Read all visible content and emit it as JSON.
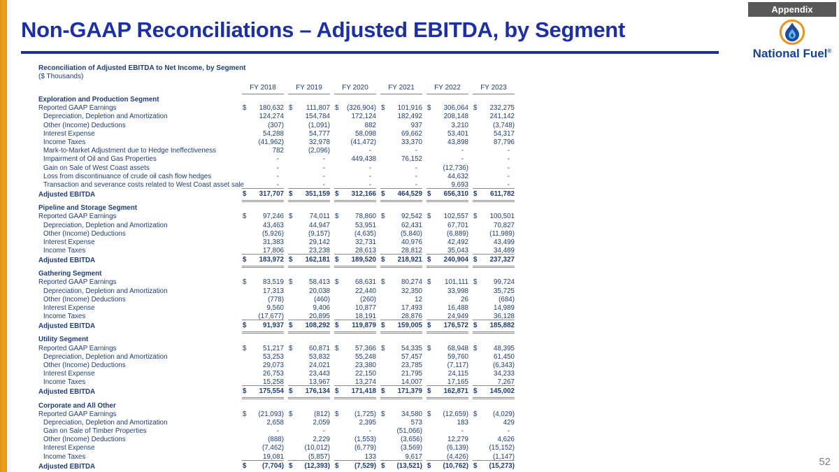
{
  "badge": "Appendix",
  "title": "Non-GAAP Reconciliations – Adjusted EBITDA, by Segment",
  "logo": {
    "name": "National Fuel",
    "reg": "®",
    "icon": "national-fuel-droplet-logo"
  },
  "colors": {
    "title_blue": "#1c2fa5",
    "table_navy": "#1f3d77",
    "badge_gray": "#595959",
    "accent_orange": "#f0a013",
    "rule_gray": "#7f7f7f",
    "logo_orange": "#e8961e",
    "logo_dark_blue": "#1b4c9e",
    "logo_light_blue": "#62b5e5"
  },
  "page_number": "52",
  "table": {
    "subtitle": "Reconciliation of Adjusted EBITDA to Net Income, by Segment",
    "units": "($ Thousands)",
    "columns": [
      "FY 2018",
      "FY 2019",
      "FY 2020",
      "FY 2021",
      "FY 2022",
      "FY 2023"
    ],
    "sections": [
      {
        "name": "Exploration and Production Segment",
        "rows": [
          {
            "label": "Reported GAAP Earnings",
            "dollar": true,
            "indent": false,
            "values": [
              "180,632",
              "111,807",
              "(326,904)",
              "101,916",
              "306,064",
              "232,275"
            ]
          },
          {
            "label": "Depreciation, Depletion and Amortization",
            "indent": true,
            "values": [
              "124,274",
              "154,784",
              "172,124",
              "182,492",
              "208,148",
              "241,142"
            ]
          },
          {
            "label": "Other (Income) Deductions",
            "indent": true,
            "values": [
              "(307)",
              "(1,091)",
              "882",
              "937",
              "3,210",
              "(3,748)"
            ]
          },
          {
            "label": "Interest Expense",
            "indent": true,
            "values": [
              "54,288",
              "54,777",
              "58,098",
              "69,662",
              "53,401",
              "54,317"
            ]
          },
          {
            "label": "Income Taxes",
            "indent": true,
            "values": [
              "(41,962)",
              "32,978",
              "(41,472)",
              "33,370",
              "43,898",
              "87,796"
            ]
          },
          {
            "label": "Mark-to-Market Adjustment due to Hedge Ineffectiveness",
            "indent": true,
            "values": [
              "782",
              "(2,096)",
              "-",
              "-",
              "-",
              "-"
            ]
          },
          {
            "label": "Impairment of Oil and Gas Properties",
            "indent": true,
            "values": [
              "-",
              "-",
              "449,438",
              "76,152",
              "-",
              "-"
            ]
          },
          {
            "label": "Gain on Sale of West Coast assets",
            "indent": true,
            "values": [
              "-",
              "-",
              "-",
              "-",
              "(12,736)",
              "-"
            ]
          },
          {
            "label": "Loss from discontinuance of crude oil cash flow hedges",
            "indent": true,
            "values": [
              "-",
              "-",
              "-",
              "-",
              "44,632",
              "-"
            ]
          },
          {
            "label": "Transaction and severance costs related to West Coast asset sale",
            "indent": true,
            "values": [
              "-",
              "-",
              "-",
              "-",
              "9,693",
              "-"
            ]
          }
        ],
        "total": {
          "label": "Adjusted EBITDA",
          "values": [
            "317,707",
            "351,159",
            "312,166",
            "464,529",
            "656,310",
            "611,782"
          ]
        }
      },
      {
        "name": "Pipeline and Storage Segment",
        "rows": [
          {
            "label": "Reported GAAP Earnings",
            "dollar": true,
            "indent": false,
            "values": [
              "97,246",
              "74,011",
              "78,860",
              "92,542",
              "102,557",
              "100,501"
            ]
          },
          {
            "label": "Depreciation, Depletion and Amortization",
            "indent": true,
            "values": [
              "43,463",
              "44,947",
              "53,951",
              "62,431",
              "67,701",
              "70,827"
            ]
          },
          {
            "label": "Other (Income) Deductions",
            "indent": true,
            "values": [
              "(5,926)",
              "(9,157)",
              "(4,635)",
              "(5,840)",
              "(6,889)",
              "(11,989)"
            ]
          },
          {
            "label": "Interest Expense",
            "indent": true,
            "values": [
              "31,383",
              "29,142",
              "32,731",
              "40,976",
              "42,492",
              "43,499"
            ]
          },
          {
            "label": "Income Taxes",
            "indent": true,
            "values": [
              "17,806",
              "23,238",
              "28,613",
              "28,812",
              "35,043",
              "34,489"
            ]
          }
        ],
        "total": {
          "label": "Adjusted EBITDA",
          "values": [
            "183,972",
            "162,181",
            "189,520",
            "218,921",
            "240,904",
            "237,327"
          ]
        }
      },
      {
        "name": "Gathering Segment",
        "rows": [
          {
            "label": "Reported GAAP Earnings",
            "dollar": true,
            "indent": false,
            "values": [
              "83,519",
              "58,413",
              "68,631",
              "80,274",
              "101,111",
              "99,724"
            ]
          },
          {
            "label": "Depreciation, Depletion and Amortization",
            "indent": true,
            "values": [
              "17,313",
              "20,038",
              "22,440",
              "32,350",
              "33,998",
              "35,725"
            ]
          },
          {
            "label": "Other (Income) Deductions",
            "indent": true,
            "values": [
              "(778)",
              "(460)",
              "(260)",
              "12",
              "26",
              "(684)"
            ]
          },
          {
            "label": "Interest Expense",
            "indent": true,
            "values": [
              "9,560",
              "9,406",
              "10,877",
              "17,493",
              "16,488",
              "14,989"
            ]
          },
          {
            "label": "Income Taxes",
            "indent": true,
            "values": [
              "(17,677)",
              "20,895",
              "18,191",
              "28,876",
              "24,949",
              "36,128"
            ]
          }
        ],
        "total": {
          "label": "Adjusted EBITDA",
          "values": [
            "91,937",
            "108,292",
            "119,879",
            "159,005",
            "176,572",
            "185,882"
          ]
        }
      },
      {
        "name": "Utility Segment",
        "rows": [
          {
            "label": "Reported GAAP Earnings",
            "dollar": true,
            "indent": false,
            "values": [
              "51,217",
              "60,871",
              "57,366",
              "54,335",
              "68,948",
              "48,395"
            ]
          },
          {
            "label": "Depreciation, Depletion and Amortization",
            "indent": true,
            "values": [
              "53,253",
              "53,832",
              "55,248",
              "57,457",
              "59,760",
              "61,450"
            ]
          },
          {
            "label": "Other (Income) Deductions",
            "indent": true,
            "values": [
              "29,073",
              "24,021",
              "23,380",
              "23,785",
              "(7,117)",
              "(6,343)"
            ]
          },
          {
            "label": "Interest Expense",
            "indent": true,
            "values": [
              "26,753",
              "23,443",
              "22,150",
              "21,795",
              "24,115",
              "34,233"
            ]
          },
          {
            "label": "Income Taxes",
            "indent": true,
            "values": [
              "15,258",
              "13,967",
              "13,274",
              "14,007",
              "17,165",
              "7,267"
            ]
          }
        ],
        "total": {
          "label": "Adjusted EBITDA",
          "values": [
            "175,554",
            "176,134",
            "171,418",
            "171,379",
            "162,871",
            "145,002"
          ]
        }
      },
      {
        "name": "Corporate and All Other",
        "rows": [
          {
            "label": "Reported GAAP Earnings",
            "dollar": true,
            "indent": false,
            "values": [
              "(21,093)",
              "(812)",
              "(1,725)",
              "34,580",
              "(12,659)",
              "(4,029)"
            ]
          },
          {
            "label": "Depreciation, Depletion and Amortization",
            "indent": true,
            "values": [
              "2,658",
              "2,059",
              "2,395",
              "573",
              "183",
              "429"
            ]
          },
          {
            "label": "Gain on Sale of Timber Properties",
            "indent": true,
            "values": [
              "-",
              "-",
              "-",
              "(51,066)",
              "-",
              "-"
            ]
          },
          {
            "label": "Other (Income) Deductions",
            "indent": true,
            "values": [
              "(888)",
              "2,229",
              "(1,553)",
              "(3,656)",
              "12,279",
              "4,626"
            ]
          },
          {
            "label": "Interest Expense",
            "indent": true,
            "values": [
              "(7,462)",
              "(10,012)",
              "(6,779)",
              "(3,569)",
              "(6,139)",
              "(15,152)"
            ]
          },
          {
            "label": "Income Taxes",
            "indent": true,
            "values": [
              "19,081",
              "(5,857)",
              "133",
              "9,617",
              "(4,426)",
              "(1,147)"
            ]
          }
        ],
        "total": {
          "label": "Adjusted EBITDA",
          "values": [
            "(7,704)",
            "(12,393)",
            "(7,529)",
            "(13,521)",
            "(10,762)",
            "(15,273)"
          ]
        }
      }
    ]
  }
}
